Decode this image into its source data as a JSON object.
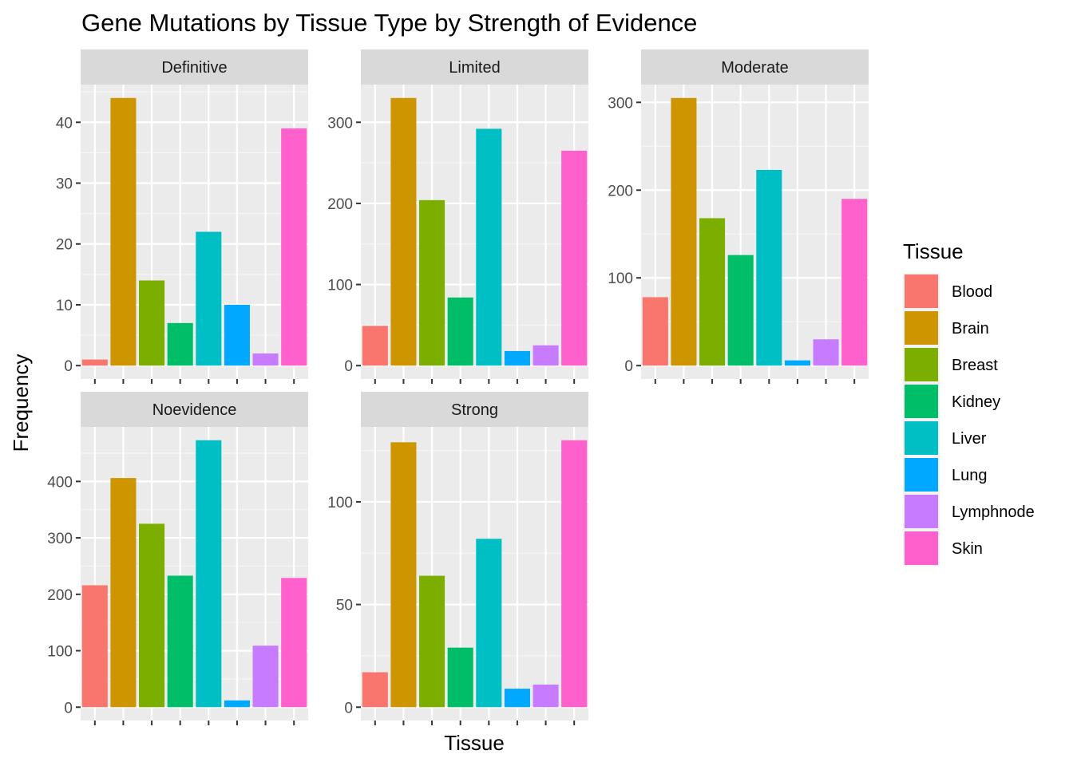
{
  "chart_data": {
    "type": "bar",
    "title": "Gene Mutations by Tissue Type by Strength of Evidence",
    "xlabel": "Tissue",
    "ylabel": "Frequency",
    "categories": [
      "Blood",
      "Brain",
      "Breast",
      "Kidney",
      "Liver",
      "Lung",
      "Lymphnode",
      "Skin"
    ],
    "grid": true,
    "legend": {
      "title": "Tissue",
      "position": "right",
      "colors": [
        "#F8766D",
        "#CD9600",
        "#7CAE00",
        "#00BE67",
        "#00BFC4",
        "#00A9FF",
        "#C77CFF",
        "#FF61CC"
      ]
    },
    "facets": [
      {
        "name": "Definitive",
        "values": [
          1,
          44,
          14,
          7,
          22,
          10,
          2,
          39
        ],
        "ylim": [
          -2.2,
          46.2
        ],
        "yticks": [
          0,
          10,
          20,
          30,
          40
        ]
      },
      {
        "name": "Limited",
        "values": [
          49,
          330,
          204,
          84,
          292,
          18,
          25,
          265
        ],
        "ylim": [
          -16.5,
          346.5
        ],
        "yticks": [
          0,
          100,
          200,
          300
        ]
      },
      {
        "name": "Moderate",
        "values": [
          78,
          305,
          168,
          126,
          223,
          6,
          30,
          190
        ],
        "ylim": [
          -15.25,
          320.25
        ],
        "yticks": [
          0,
          100,
          200,
          300
        ]
      },
      {
        "name": "Noevidence",
        "values": [
          216,
          406,
          325,
          233,
          473,
          12,
          109,
          229
        ],
        "ylim": [
          -23.65,
          496.65
        ],
        "yticks": [
          0,
          100,
          200,
          300,
          400
        ]
      },
      {
        "name": "Strong",
        "values": [
          17,
          129,
          64,
          29,
          82,
          9,
          11,
          130
        ],
        "ylim": [
          -6.5,
          136.5
        ],
        "yticks": [
          0,
          50,
          100
        ]
      }
    ]
  }
}
